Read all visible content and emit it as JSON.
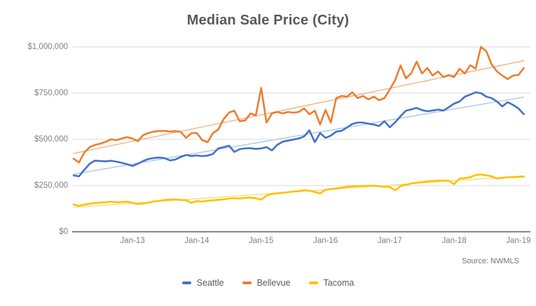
{
  "title": "Median Sale Price (City)",
  "source": "Source: NWMLS",
  "chart_data": {
    "type": "line",
    "start_month": "Feb-12",
    "end_month": "Feb-19",
    "x_tick_labels": [
      "Jan-13",
      "Jan-14",
      "Jan-15",
      "Jan-16",
      "Jan-17",
      "Jan-18",
      "Jan-19"
    ],
    "x_tick_month_indices": [
      11,
      23,
      35,
      47,
      59,
      71,
      83
    ],
    "y_tick_labels": [
      "$0",
      "$250,000",
      "$500,000",
      "$750,000",
      "$1,000,000"
    ],
    "y_tick_values": [
      0,
      250000,
      500000,
      750000,
      1000000
    ],
    "ylim": [
      0,
      1000000
    ],
    "grid": "horizontal",
    "legend_position": "bottom",
    "trendlines": true,
    "series": [
      {
        "name": "Seattle",
        "color": "#4472C4",
        "trend_color": "#AEC6EE",
        "values": [
          305000,
          300000,
          335000,
          368000,
          385000,
          383000,
          381000,
          384000,
          379000,
          373000,
          365000,
          356000,
          368000,
          383000,
          394000,
          399000,
          402000,
          398000,
          386000,
          391000,
          405000,
          415000,
          410000,
          413000,
          409000,
          412000,
          421000,
          451000,
          458000,
          466000,
          432000,
          447000,
          451000,
          452000,
          448000,
          451000,
          458000,
          440000,
          470000,
          487000,
          493000,
          499000,
          505000,
          515000,
          549000,
          485000,
          534000,
          508000,
          520000,
          542000,
          546000,
          564000,
          583000,
          591000,
          591000,
          585000,
          580000,
          572000,
          598000,
          565000,
          592000,
          625000,
          655000,
          662000,
          670000,
          658000,
          652000,
          656000,
          661000,
          656000,
          674000,
          693000,
          704000,
          731000,
          742000,
          754000,
          750000,
          731000,
          723000,
          704000,
          678000,
          701000,
          686000,
          667000,
          636000
        ]
      },
      {
        "name": "Bellevue",
        "color": "#ED7D31",
        "trend_color": "#F5B183",
        "values": [
          395000,
          375000,
          428000,
          458000,
          470000,
          477000,
          487000,
          500000,
          496000,
          505000,
          512000,
          504000,
          490000,
          523000,
          534000,
          542000,
          545000,
          546000,
          542000,
          545000,
          540000,
          508000,
          534000,
          534000,
          496000,
          485000,
          534000,
          553000,
          610000,
          645000,
          655000,
          598000,
          602000,
          640000,
          629000,
          778000,
          591000,
          640000,
          648000,
          640000,
          648000,
          644000,
          648000,
          667000,
          636000,
          655000,
          580000,
          659000,
          591000,
          723000,
          735000,
          731000,
          754000,
          723000,
          735000,
          716000,
          731000,
          712000,
          723000,
          770000,
          820000,
          900000,
          830000,
          858000,
          920000,
          856000,
          886000,
          845000,
          867000,
          837000,
          848000,
          837000,
          882000,
          856000,
          901000,
          882000,
          1000000,
          977000,
          905000,
          867000,
          845000,
          826000,
          845000,
          848000,
          886000
        ]
      },
      {
        "name": "Tacoma",
        "color": "#FFC000",
        "trend_color": "#FFDE7A",
        "values": [
          148000,
          140000,
          147000,
          152000,
          155000,
          158000,
          160000,
          163000,
          159000,
          161000,
          163000,
          156000,
          150000,
          153000,
          158000,
          164000,
          167000,
          172000,
          174000,
          175000,
          172000,
          170000,
          157000,
          166000,
          163000,
          168000,
          170000,
          173000,
          175000,
          180000,
          182000,
          180000,
          183000,
          185000,
          181000,
          174000,
          196000,
          205000,
          208000,
          211000,
          214000,
          218000,
          220000,
          225000,
          222000,
          215000,
          208000,
          227000,
          231000,
          235000,
          239000,
          243000,
          246000,
          247000,
          248000,
          249000,
          250000,
          246000,
          243000,
          242000,
          224000,
          247000,
          255000,
          261000,
          265000,
          269000,
          273000,
          274000,
          276000,
          277000,
          277000,
          258000,
          288000,
          290000,
          295000,
          307000,
          310000,
          305000,
          300000,
          288000,
          292000,
          295000,
          295000,
          297000,
          299000
        ]
      }
    ]
  }
}
